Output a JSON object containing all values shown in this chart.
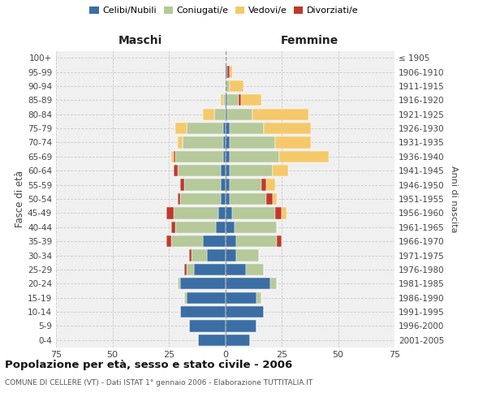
{
  "age_groups": [
    "0-4",
    "5-9",
    "10-14",
    "15-19",
    "20-24",
    "25-29",
    "30-34",
    "35-39",
    "40-44",
    "45-49",
    "50-54",
    "55-59",
    "60-64",
    "65-69",
    "70-74",
    "75-79",
    "80-84",
    "85-89",
    "90-94",
    "95-99",
    "100+"
  ],
  "birth_years": [
    "2001-2005",
    "1996-2000",
    "1991-1995",
    "1986-1990",
    "1981-1985",
    "1976-1980",
    "1971-1975",
    "1966-1970",
    "1961-1965",
    "1956-1960",
    "1951-1955",
    "1946-1950",
    "1941-1945",
    "1936-1940",
    "1931-1935",
    "1926-1930",
    "1921-1925",
    "1916-1920",
    "1911-1915",
    "1906-1910",
    "≤ 1905"
  ],
  "maschi": {
    "celibi": [
      12,
      16,
      20,
      17,
      20,
      14,
      8,
      10,
      4,
      3,
      2,
      2,
      2,
      1,
      1,
      1,
      0,
      0,
      0,
      0,
      0
    ],
    "coniugati": [
      0,
      0,
      0,
      1,
      1,
      3,
      7,
      14,
      18,
      20,
      18,
      16,
      19,
      21,
      18,
      16,
      5,
      1,
      0,
      0,
      0
    ],
    "vedovi": [
      0,
      0,
      0,
      0,
      0,
      0,
      0,
      0,
      0,
      0,
      0,
      0,
      0,
      1,
      2,
      5,
      5,
      1,
      0,
      0,
      0
    ],
    "divorziati": [
      0,
      0,
      0,
      0,
      0,
      1,
      1,
      2,
      2,
      3,
      1,
      2,
      2,
      1,
      0,
      0,
      0,
      0,
      0,
      0,
      0
    ]
  },
  "femmine": {
    "nubili": [
      11,
      14,
      17,
      14,
      20,
      9,
      5,
      5,
      4,
      3,
      2,
      2,
      2,
      2,
      2,
      2,
      1,
      1,
      0,
      1,
      0
    ],
    "coniugate": [
      0,
      0,
      0,
      2,
      3,
      8,
      10,
      18,
      19,
      19,
      16,
      14,
      19,
      22,
      20,
      15,
      11,
      5,
      2,
      0,
      0
    ],
    "vedove": [
      0,
      0,
      0,
      0,
      0,
      0,
      0,
      0,
      0,
      2,
      2,
      4,
      7,
      22,
      16,
      21,
      25,
      9,
      6,
      1,
      0
    ],
    "divorziate": [
      0,
      0,
      0,
      0,
      0,
      0,
      0,
      2,
      0,
      3,
      3,
      2,
      0,
      0,
      0,
      0,
      0,
      1,
      0,
      1,
      0
    ]
  },
  "colors": {
    "celibi": "#3A6EA5",
    "coniugati": "#B5C99A",
    "vedovi": "#F5C96A",
    "divorziati": "#C0392B"
  },
  "xlim": 75,
  "title": "Popolazione per età, sesso e stato civile - 2006",
  "subtitle": "COMUNE DI CELLERE (VT) - Dati ISTAT 1° gennaio 2006 - Elaborazione TUTTITALIA.IT",
  "ylabel_left": "Fasce di età",
  "ylabel_right": "Anni di nascita",
  "xlabel_left": "Maschi",
  "xlabel_right": "Femmine",
  "bg_color": "#f0f0f0",
  "grid_color": "#cccccc"
}
